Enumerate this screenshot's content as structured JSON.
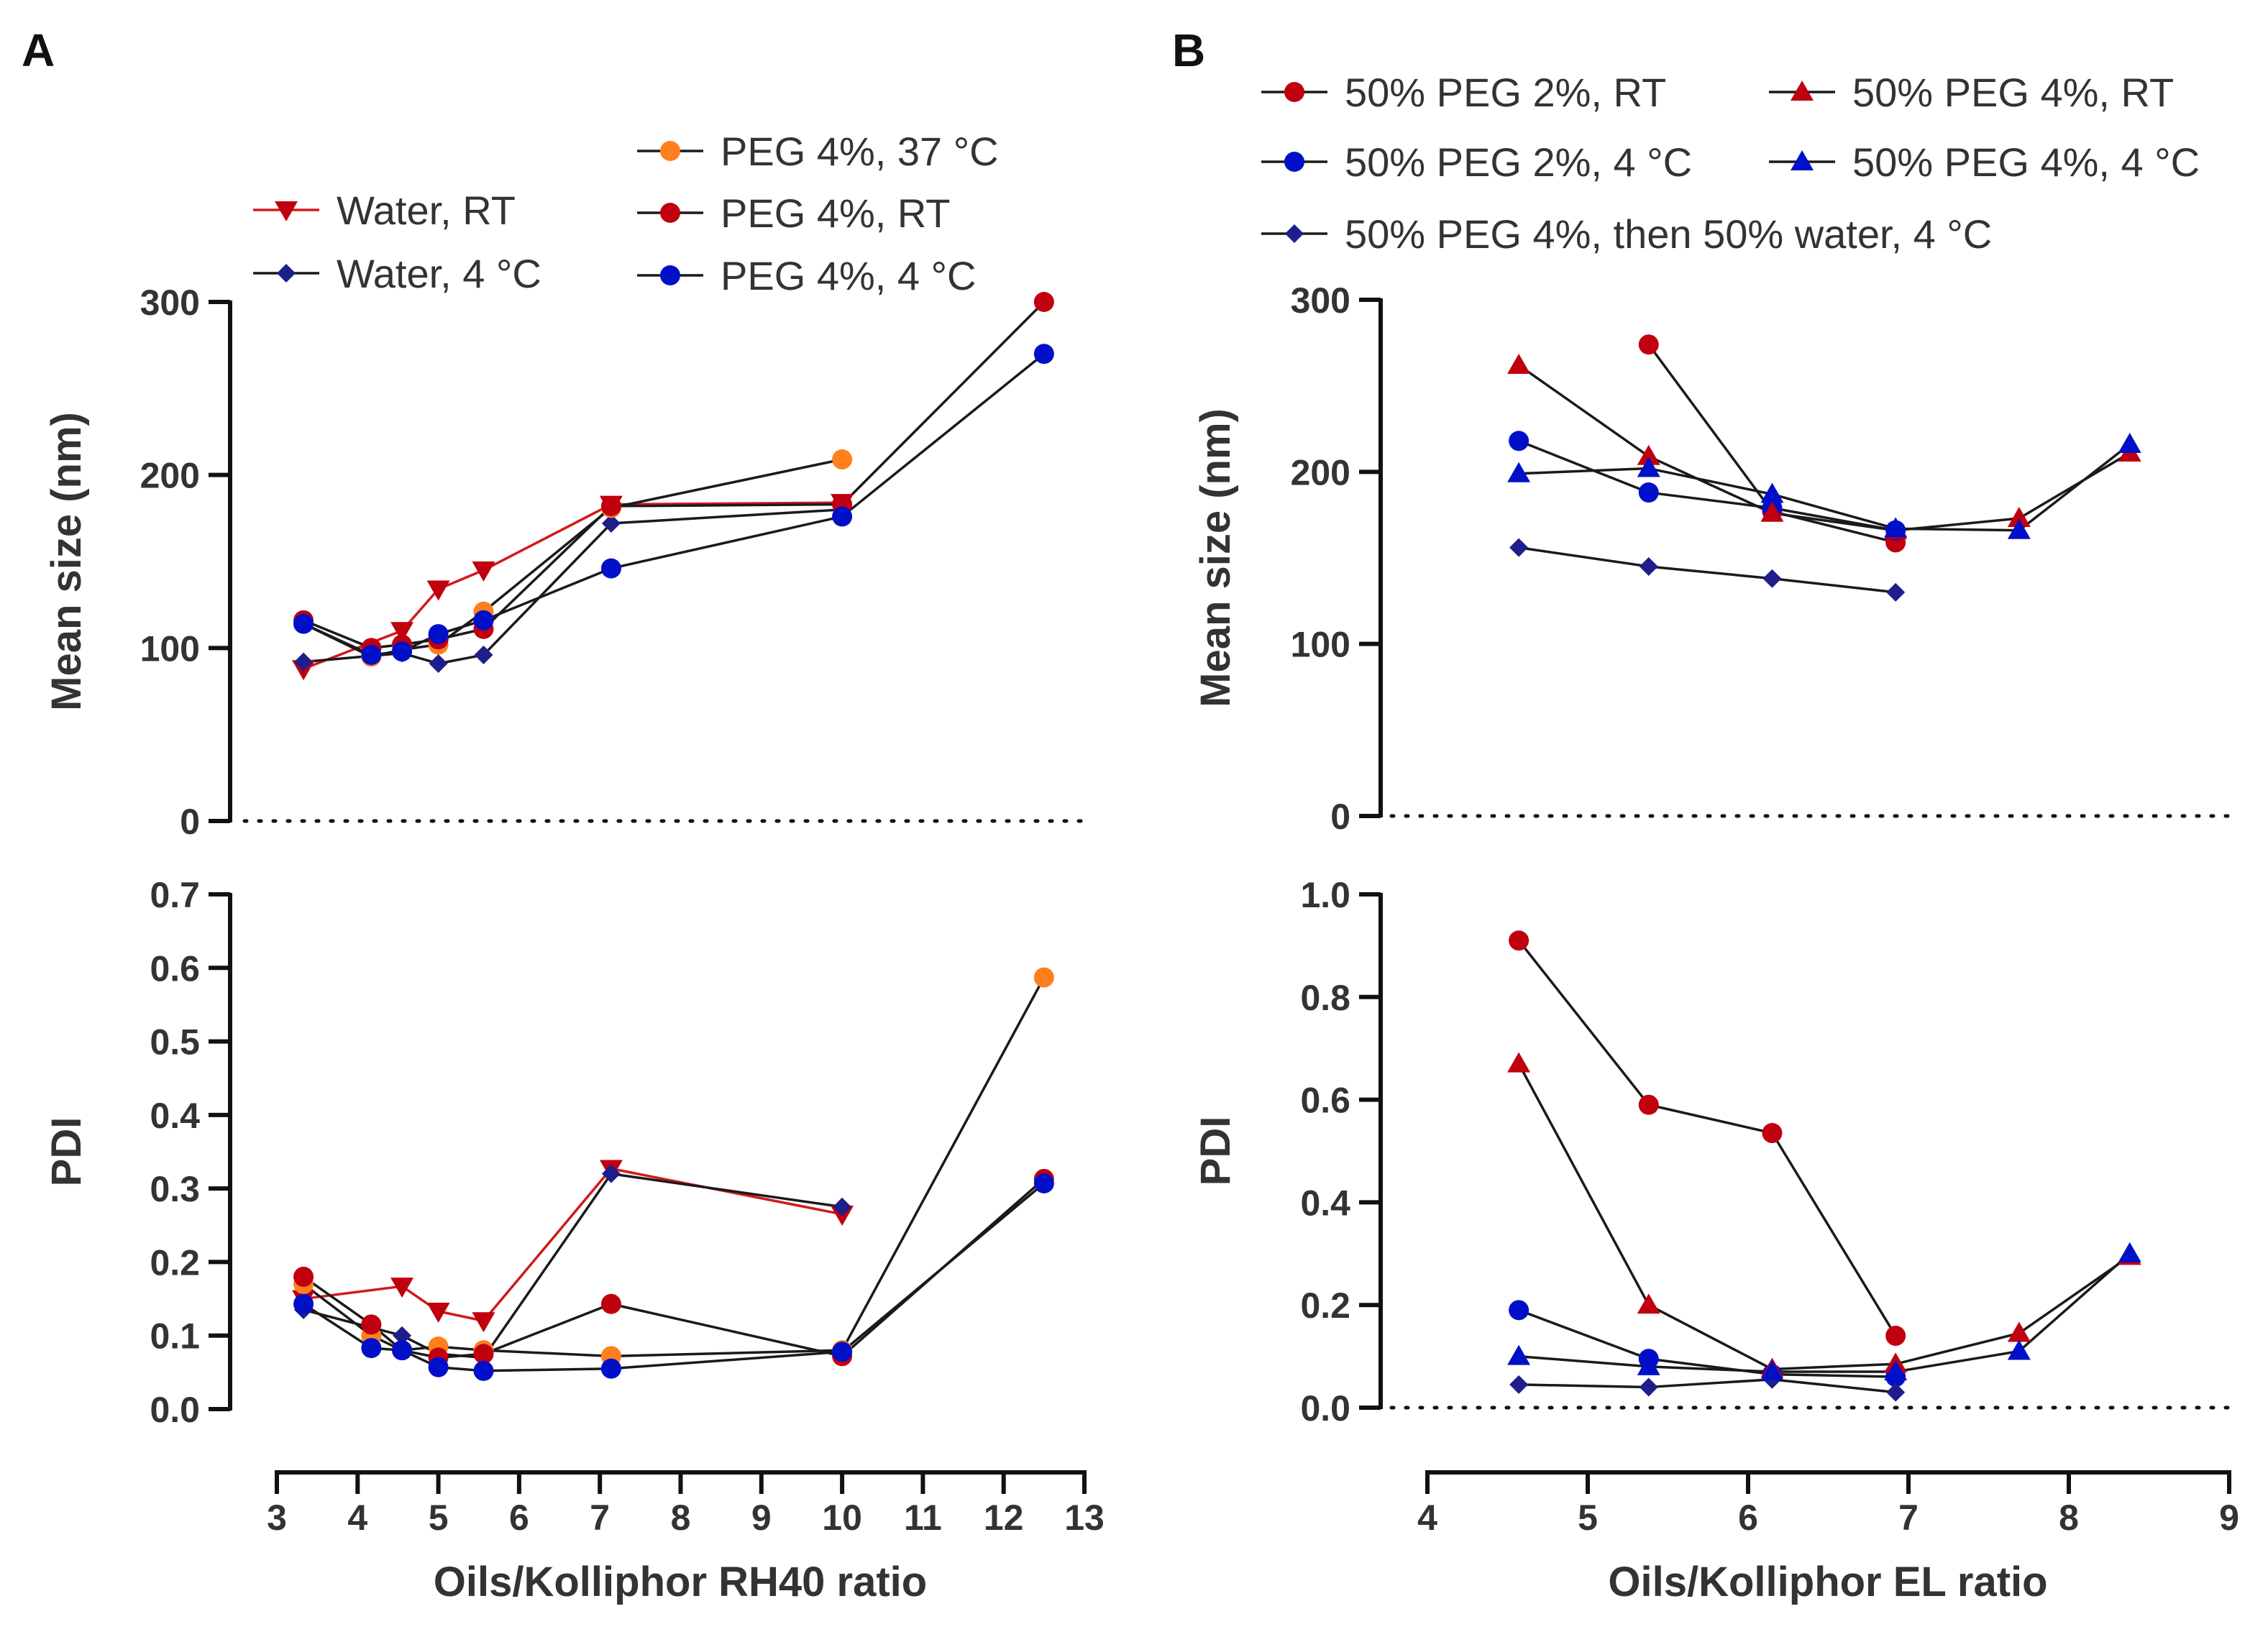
{
  "panels": [
    {
      "letter": "A"
    },
    {
      "letter": "B"
    }
  ],
  "colors": {
    "red_line": "#d11a1a",
    "red_marker": "#c0000f",
    "blue_marker": "#0010c8",
    "navy_marker": "#1e1e8c",
    "orange_marker": "#ff7f1e",
    "black_line": "#1a1a1a",
    "axis": "#111111"
  },
  "chart_data": [
    {
      "id": "A-size",
      "type": "line",
      "panel": "A",
      "title": "",
      "xlabel": "",
      "ylabel": "Mean size (nm)",
      "xlim": [
        3,
        13
      ],
      "ylim": [
        0,
        300
      ],
      "yticks": [
        0,
        100,
        200,
        300
      ],
      "baseline_dotted": true,
      "series": [
        {
          "name": "Water, RT",
          "marker": "triangle-down",
          "color": "red_marker",
          "line": "red_line",
          "x": [
            3.33,
            4.55,
            5.0,
            5.56,
            7.14,
            10.0
          ],
          "y": [
            88,
            110,
            134,
            145,
            183,
            184
          ]
        },
        {
          "name": "Water, 4 °C",
          "marker": "diamond",
          "color": "navy_marker",
          "line": "black_line",
          "x": [
            3.33,
            4.55,
            5.0,
            5.56,
            7.14,
            10.0
          ],
          "y": [
            92,
            97,
            91,
            96,
            172,
            180
          ]
        },
        {
          "name": "PEG 4%, 37 °C",
          "marker": "circle",
          "color": "orange_marker",
          "line": "black_line",
          "x": [
            3.33,
            4.17,
            4.55,
            5.0,
            5.56,
            7.14,
            10.0
          ],
          "y": [
            114,
            95,
            99,
            102,
            121,
            181,
            209
          ]
        },
        {
          "name": "PEG 4%, RT",
          "marker": "circle",
          "color": "red_marker",
          "line": "black_line",
          "x": [
            3.33,
            4.17,
            4.55,
            5.0,
            5.56,
            7.14,
            10.0,
            12.5
          ],
          "y": [
            116,
            100,
            102,
            105,
            111,
            182,
            183,
            300
          ]
        },
        {
          "name": "PEG 4%, 4 °C",
          "marker": "circle",
          "color": "blue_marker",
          "line": "black_line",
          "x": [
            3.33,
            4.17,
            4.55,
            5.0,
            5.56,
            7.14,
            10.0,
            12.5
          ],
          "y": [
            114,
            96,
            98,
            108,
            116,
            146,
            176,
            270
          ]
        }
      ]
    },
    {
      "id": "A-pdi",
      "type": "line",
      "panel": "A",
      "title": "",
      "xlabel": "Oils/Kolliphor RH40 ratio",
      "ylabel": "PDI",
      "xlim": [
        3,
        13
      ],
      "xticks": [
        3,
        4,
        5,
        6,
        7,
        8,
        9,
        10,
        11,
        12,
        13
      ],
      "ylim": [
        0,
        0.7
      ],
      "yticks": [
        "0.0",
        "0.1",
        "0.2",
        "0.3",
        "0.4",
        "0.5",
        "0.6",
        "0.7"
      ],
      "baseline_dotted": false,
      "series": [
        {
          "name": "Water, RT",
          "marker": "triangle-down",
          "color": "red_marker",
          "line": "red_line",
          "x": [
            3.33,
            4.55,
            5.0,
            5.56,
            7.14,
            10.0
          ],
          "y": [
            0.15,
            0.167,
            0.133,
            0.12,
            0.327,
            0.265
          ]
        },
        {
          "name": "Water, 4 °C",
          "marker": "diamond",
          "color": "navy_marker",
          "line": "black_line",
          "x": [
            3.33,
            4.55,
            5.0,
            5.56,
            7.14,
            10.0
          ],
          "y": [
            0.135,
            0.1,
            0.075,
            0.07,
            0.32,
            0.275
          ]
        },
        {
          "name": "PEG 4%, 37 °C",
          "marker": "circle",
          "color": "orange_marker",
          "line": "black_line",
          "x": [
            3.33,
            4.17,
            4.55,
            5.0,
            5.56,
            7.14,
            10.0,
            12.5
          ],
          "y": [
            0.17,
            0.1,
            0.08,
            0.085,
            0.08,
            0.072,
            0.08,
            0.587
          ]
        },
        {
          "name": "PEG 4%, RT",
          "marker": "circle",
          "color": "red_marker",
          "line": "black_line",
          "x": [
            3.33,
            4.17,
            4.55,
            5.0,
            5.56,
            7.14,
            10.0,
            12.5
          ],
          "y": [
            0.18,
            0.115,
            0.08,
            0.07,
            0.075,
            0.143,
            0.072,
            0.313
          ]
        },
        {
          "name": "PEG 4%, 4 °C",
          "marker": "circle",
          "color": "blue_marker",
          "line": "black_line",
          "x": [
            3.33,
            4.17,
            4.55,
            5.0,
            5.56,
            7.14,
            10.0,
            12.5
          ],
          "y": [
            0.143,
            0.083,
            0.08,
            0.057,
            0.052,
            0.055,
            0.078,
            0.307
          ]
        }
      ]
    },
    {
      "id": "B-size",
      "type": "line",
      "panel": "B",
      "title": "",
      "xlabel": "",
      "ylabel": "Mean size (nm)",
      "xlim": [
        4,
        9
      ],
      "ylim": [
        0,
        300
      ],
      "yticks": [
        0,
        100,
        200,
        300
      ],
      "baseline_dotted": true,
      "series": [
        {
          "name": "50% PEG 2%, RT",
          "marker": "circle",
          "color": "red_marker",
          "line": "black_line",
          "x": [
            5.38,
            6.15,
            6.92
          ],
          "y": [
            274,
            177,
            159
          ]
        },
        {
          "name": "50% PEG 2%, 4 °C",
          "marker": "circle",
          "color": "blue_marker",
          "line": "black_line",
          "x": [
            4.57,
            5.38,
            6.15,
            6.92
          ],
          "y": [
            218,
            188,
            179,
            166
          ]
        },
        {
          "name": "50% PEG 4%, then 50% water, 4 °C",
          "marker": "diamond",
          "color": "navy_marker",
          "line": "black_line",
          "x": [
            4.57,
            5.38,
            6.15,
            6.92
          ],
          "y": [
            156,
            145,
            138,
            130
          ]
        },
        {
          "name": "50% PEG 4%, RT",
          "marker": "triangle-up",
          "color": "red_marker",
          "line": "black_line",
          "x": [
            4.57,
            5.38,
            6.15,
            6.92,
            7.69,
            8.38
          ],
          "y": [
            262,
            209,
            176,
            166,
            173,
            211
          ]
        },
        {
          "name": "50% PEG 4%, 4 °C",
          "marker": "triangle-up",
          "color": "blue_marker",
          "line": "black_line",
          "x": [
            4.57,
            5.38,
            6.15,
            6.92,
            7.69,
            8.38
          ],
          "y": [
            199,
            202,
            187,
            167,
            166,
            216
          ]
        }
      ]
    },
    {
      "id": "B-pdi",
      "type": "line",
      "panel": "B",
      "title": "",
      "xlabel": "Oils/Kolliphor EL ratio",
      "ylabel": "PDI",
      "xlim": [
        4,
        9
      ],
      "xticks": [
        4,
        5,
        6,
        7,
        8,
        9
      ],
      "ylim": [
        0,
        1.0
      ],
      "yticks": [
        "0.0",
        "0.2",
        "0.4",
        "0.6",
        "0.8",
        "1.0"
      ],
      "baseline_dotted": true,
      "series": [
        {
          "name": "50% PEG 2%, RT",
          "marker": "circle",
          "color": "red_marker",
          "line": "black_line",
          "x": [
            4.57,
            5.38,
            6.15,
            6.92
          ],
          "y": [
            0.91,
            0.59,
            0.535,
            0.14
          ]
        },
        {
          "name": "50% PEG 2%, 4 °C",
          "marker": "circle",
          "color": "blue_marker",
          "line": "black_line",
          "x": [
            4.57,
            5.38,
            6.15,
            6.92
          ],
          "y": [
            0.19,
            0.095,
            0.065,
            0.06
          ]
        },
        {
          "name": "50% PEG 4%, then 50% water, 4 °C",
          "marker": "diamond",
          "color": "navy_marker",
          "line": "black_line",
          "x": [
            4.57,
            5.38,
            6.15,
            6.92
          ],
          "y": [
            0.045,
            0.04,
            0.055,
            0.03
          ]
        },
        {
          "name": "50% PEG 4%, RT",
          "marker": "triangle-up",
          "color": "red_marker",
          "line": "black_line",
          "x": [
            4.57,
            5.38,
            6.15,
            6.92,
            7.69,
            8.38
          ],
          "y": [
            0.67,
            0.2,
            0.075,
            0.085,
            0.145,
            0.295
          ]
        },
        {
          "name": "50% PEG 4%, 4 °C",
          "marker": "triangle-up",
          "color": "blue_marker",
          "line": "black_line",
          "x": [
            4.57,
            5.38,
            6.15,
            6.92,
            7.69,
            8.38
          ],
          "y": [
            0.1,
            0.08,
            0.07,
            0.07,
            0.11,
            0.3
          ]
        }
      ]
    }
  ],
  "legends": {
    "A": [
      {
        "label": "PEG 4%, 37 °C",
        "marker": "circle",
        "color": "orange_marker",
        "line": "black_line"
      },
      {
        "label": "Water, RT",
        "marker": "triangle-down",
        "color": "red_marker",
        "line": "red_line"
      },
      {
        "label": "PEG 4%, RT",
        "marker": "circle",
        "color": "red_marker",
        "line": "black_line"
      },
      {
        "label": "Water, 4 °C",
        "marker": "diamond",
        "color": "navy_marker",
        "line": "black_line"
      },
      {
        "label": "PEG 4%, 4 °C",
        "marker": "circle",
        "color": "blue_marker",
        "line": "black_line"
      }
    ],
    "B": [
      {
        "label": "50% PEG 2%, RT",
        "marker": "circle",
        "color": "red_marker",
        "line": "black_line"
      },
      {
        "label": "50% PEG 4%, RT",
        "marker": "triangle-up",
        "color": "red_marker",
        "line": "black_line"
      },
      {
        "label": "50% PEG 2%, 4 °C",
        "marker": "circle",
        "color": "blue_marker",
        "line": "black_line"
      },
      {
        "label": "50% PEG 4%, 4 °C",
        "marker": "triangle-up",
        "color": "blue_marker",
        "line": "black_line"
      },
      {
        "label": "50% PEG 4%, then 50% water, 4 °C",
        "marker": "diamond",
        "color": "navy_marker",
        "line": "black_line"
      }
    ]
  }
}
